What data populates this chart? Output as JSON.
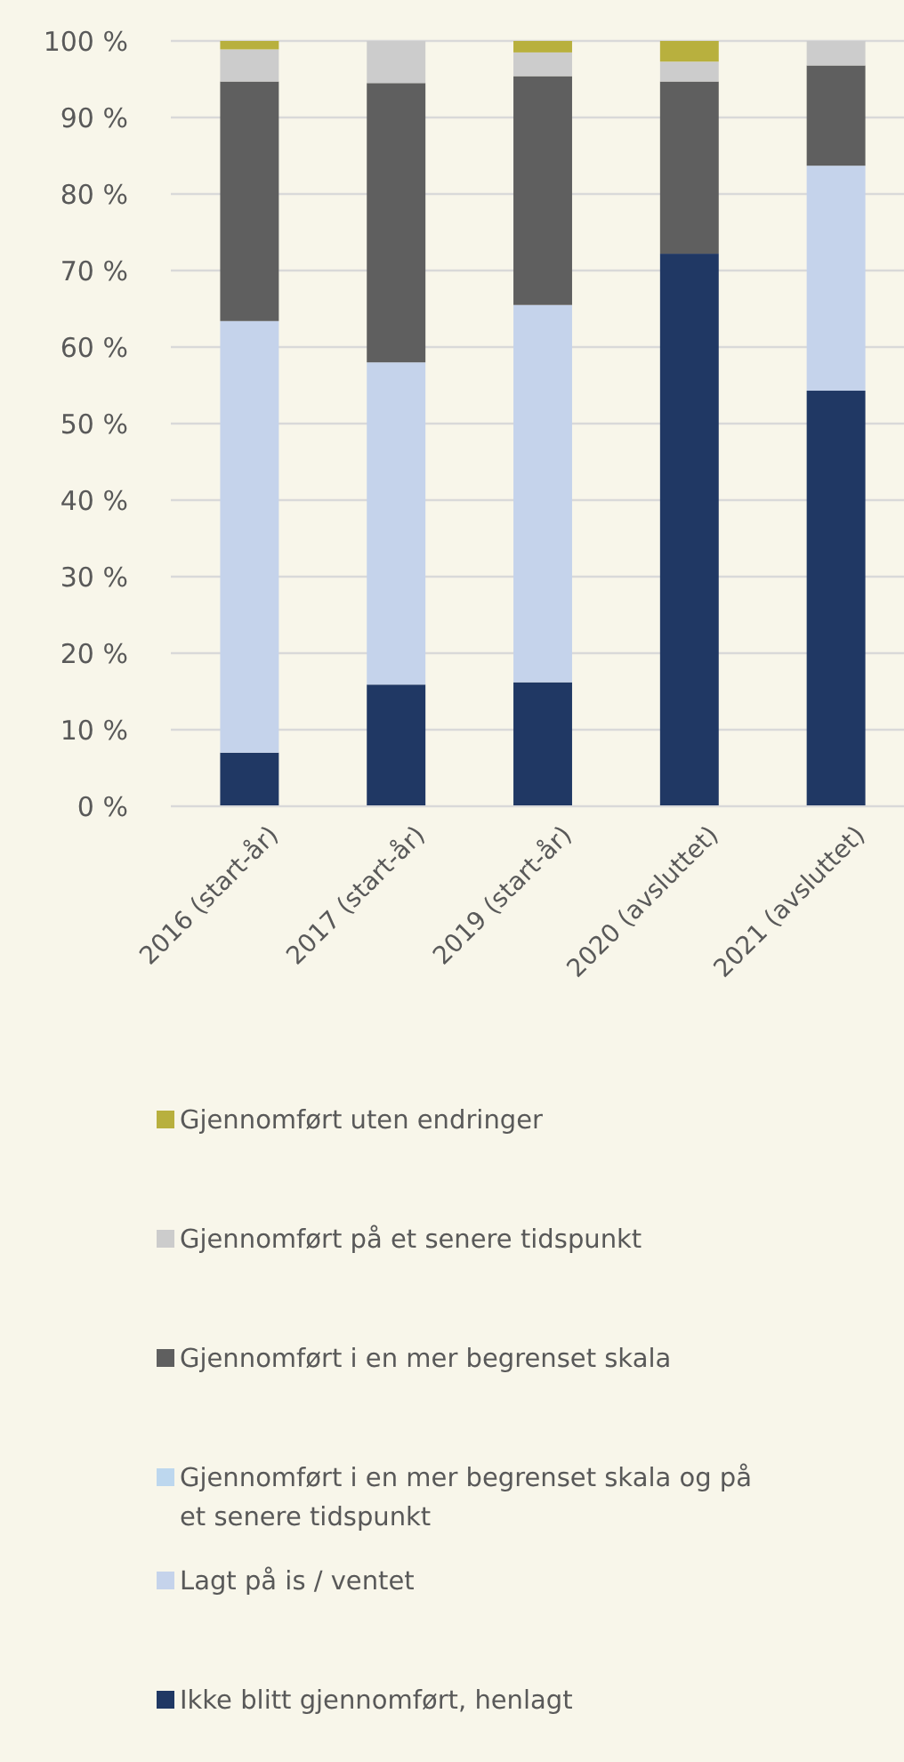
{
  "chart_data": {
    "type": "bar",
    "stacked": true,
    "categories": [
      "2016 (start-år)",
      "2017 (start-år)",
      "2019 (start-år)",
      "2020 (avsluttet)",
      "2021 (avsluttet)"
    ],
    "series": [
      {
        "name": "Ikke blitt gjennomført, henlagt",
        "color": "#203864",
        "values": [
          7.0,
          15.9,
          16.2,
          72.2,
          54.3
        ]
      },
      {
        "name": "Lagt på is / ventet",
        "color": "#c5d3eb",
        "values": [
          56.4,
          42.1,
          49.3,
          0,
          29.4
        ]
      },
      {
        "name": "Gjennomført i en mer begrenset skala og på et senere tidspunkt",
        "color": "#bdd7ee",
        "values": [
          0,
          0,
          0,
          0,
          0
        ]
      },
      {
        "name": "Gjennomført i en mer begrenset skala",
        "color": "#5f5f5f",
        "values": [
          31.3,
          36.5,
          29.9,
          22.5,
          13.1
        ]
      },
      {
        "name": "Gjennomført på et senere tidspunkt",
        "color": "#cccccc",
        "values": [
          4.2,
          5.5,
          3.1,
          2.6,
          3.2
        ]
      },
      {
        "name": "Gjennomført uten endringer",
        "color": "#b8b03e",
        "values": [
          1.1,
          0,
          1.5,
          2.7,
          0
        ]
      }
    ],
    "ylim": [
      0,
      100
    ],
    "yticks": [
      {
        "value": 0,
        "label": "0 %"
      },
      {
        "value": 10,
        "label": "10 %"
      },
      {
        "value": 20,
        "label": "20 %"
      },
      {
        "value": 30,
        "label": "30 %"
      },
      {
        "value": 40,
        "label": "40 %"
      },
      {
        "value": 50,
        "label": "50 %"
      },
      {
        "value": 60,
        "label": "60 %"
      },
      {
        "value": 70,
        "label": "70 %"
      },
      {
        "value": 80,
        "label": "80 %"
      },
      {
        "value": 90,
        "label": "90 %"
      },
      {
        "value": 100,
        "label": "100 %"
      }
    ],
    "grid": "y",
    "legend": "bottom"
  }
}
